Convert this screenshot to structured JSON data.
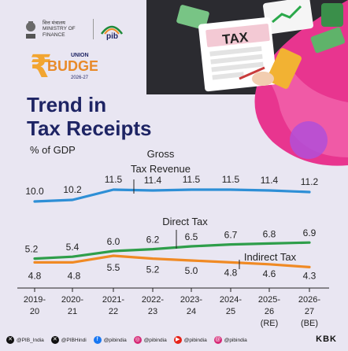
{
  "header": {
    "ministry_hindi": "वित्त मंत्रालय",
    "ministry_line1": "MINISTRY OF",
    "ministry_line2": "FINANCE",
    "pib_label": "pib",
    "budget_union": "UNION",
    "budget_word": "BUDGET",
    "budget_year": "2026-27"
  },
  "illustration": {
    "doc_label": "TAX"
  },
  "title_line1": "Trend in",
  "title_line2": "Tax Receipts",
  "unit_label": "% of GDP",
  "chart_data": {
    "type": "line",
    "categories": [
      "2019-20",
      "2020-21",
      "2021-22",
      "2022-23",
      "2023-24",
      "2024-25",
      "2025-26 (RE)",
      "2026-27 (BE)"
    ],
    "category_lines": [
      [
        "2019-",
        "20"
      ],
      [
        "2020-",
        "21"
      ],
      [
        "2021-",
        "22"
      ],
      [
        "2022-",
        "23"
      ],
      [
        "2023-",
        "24"
      ],
      [
        "2024-",
        "25"
      ],
      [
        "2025-",
        "26",
        "(RE)"
      ],
      [
        "2026-",
        "27",
        "(BE)"
      ]
    ],
    "series": [
      {
        "name": "Gross Tax Revenue",
        "label_lines": [
          "Gross",
          "Tax Revenue"
        ],
        "color": "#2e8fd6",
        "values": [
          10.0,
          10.2,
          11.5,
          11.4,
          11.5,
          11.5,
          11.4,
          11.2
        ]
      },
      {
        "name": "Direct Tax",
        "label_lines": [
          "Direct Tax"
        ],
        "color": "#2e9e4a",
        "values": [
          5.2,
          5.4,
          6.0,
          6.2,
          6.5,
          6.7,
          6.8,
          6.9
        ]
      },
      {
        "name": "Indirect Tax",
        "label_lines": [
          "Indirect Tax"
        ],
        "color": "#f08a24",
        "values": [
          4.8,
          4.8,
          5.5,
          5.2,
          5.0,
          4.8,
          4.6,
          4.3
        ]
      }
    ],
    "value_labels": [
      [
        "10.0",
        "10.2",
        "11.5",
        "11.4",
        "11.5",
        "11.5",
        "11.4",
        "11.2"
      ],
      [
        "5.2",
        "5.4",
        "6.0",
        "6.2",
        "6.5",
        "6.7",
        "6.8",
        "6.9"
      ],
      [
        "4.8",
        "4.8",
        "5.5",
        "5.2",
        "5.0",
        "4.8",
        "4.6",
        "4.3"
      ]
    ],
    "title": "Trend in Tax Receipts",
    "ylabel": "% of GDP",
    "ylim": [
      3,
      12
    ],
    "grid": false,
    "legend": "inline labels"
  },
  "footer": {
    "handles": [
      {
        "icon": "x-icon",
        "text": "@PIB_India",
        "color": "#111111"
      },
      {
        "icon": "x-icon",
        "text": "@PIBHindi",
        "color": "#111111"
      },
      {
        "icon": "facebook-icon",
        "text": "@pibindia",
        "color": "#1877f2"
      },
      {
        "icon": "instagram-icon",
        "text": "@pibindia",
        "color": "#d62976"
      },
      {
        "icon": "youtube-icon",
        "text": "@pibindia",
        "color": "#e62117"
      },
      {
        "icon": "threads-icon",
        "text": "@pibindia",
        "color": "#d62976"
      }
    ],
    "credit": "KBK"
  }
}
